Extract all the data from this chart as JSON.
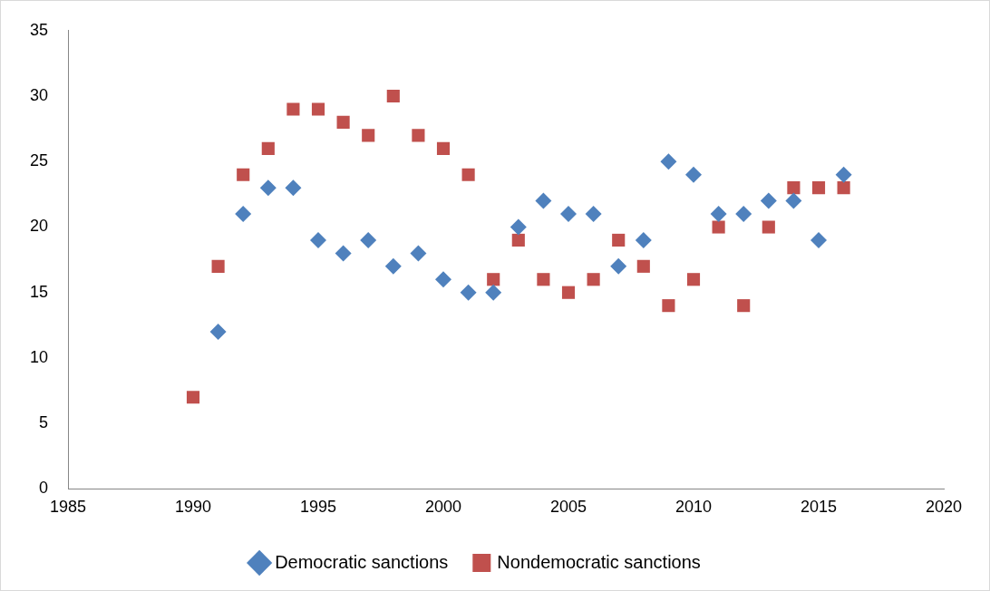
{
  "chart_data": {
    "type": "scatter",
    "xlim": [
      1985,
      2020
    ],
    "xticks": [
      1985,
      1990,
      1995,
      2000,
      2005,
      2010,
      2015,
      2020
    ],
    "ylim": [
      0,
      35
    ],
    "yticks": [
      0,
      5,
      10,
      15,
      20,
      25,
      30,
      35
    ],
    "grid": false,
    "legend": "bottom",
    "series": [
      {
        "name": "Democratic sanctions",
        "color": "#4f81bd",
        "marker": "diamond",
        "x": [
          1991,
          1992,
          1993,
          1994,
          1995,
          1996,
          1997,
          1998,
          1999,
          2000,
          2001,
          2002,
          2003,
          2004,
          2005,
          2006,
          2007,
          2008,
          2009,
          2010,
          2011,
          2012,
          2013,
          2014,
          2015,
          2016
        ],
        "values": [
          12,
          21,
          23,
          23,
          19,
          18,
          19,
          17,
          18,
          16,
          15,
          15,
          20,
          22,
          21,
          21,
          17,
          19,
          25,
          24,
          21,
          21,
          22,
          22,
          19,
          24
        ]
      },
      {
        "name": "Nondemocratic sanctions",
        "color": "#c0504d",
        "marker": "square",
        "x": [
          1990,
          1991,
          1992,
          1993,
          1994,
          1995,
          1996,
          1997,
          1998,
          1999,
          2000,
          2001,
          2002,
          2003,
          2004,
          2005,
          2006,
          2007,
          2008,
          2009,
          2010,
          2011,
          2012,
          2013,
          2014,
          2015,
          2016
        ],
        "values": [
          7,
          17,
          24,
          26,
          29,
          29,
          28,
          27,
          30,
          27,
          26,
          24,
          16,
          19,
          16,
          15,
          16,
          19,
          17,
          14,
          16,
          20,
          14,
          20,
          23,
          23,
          23
        ]
      }
    ]
  }
}
